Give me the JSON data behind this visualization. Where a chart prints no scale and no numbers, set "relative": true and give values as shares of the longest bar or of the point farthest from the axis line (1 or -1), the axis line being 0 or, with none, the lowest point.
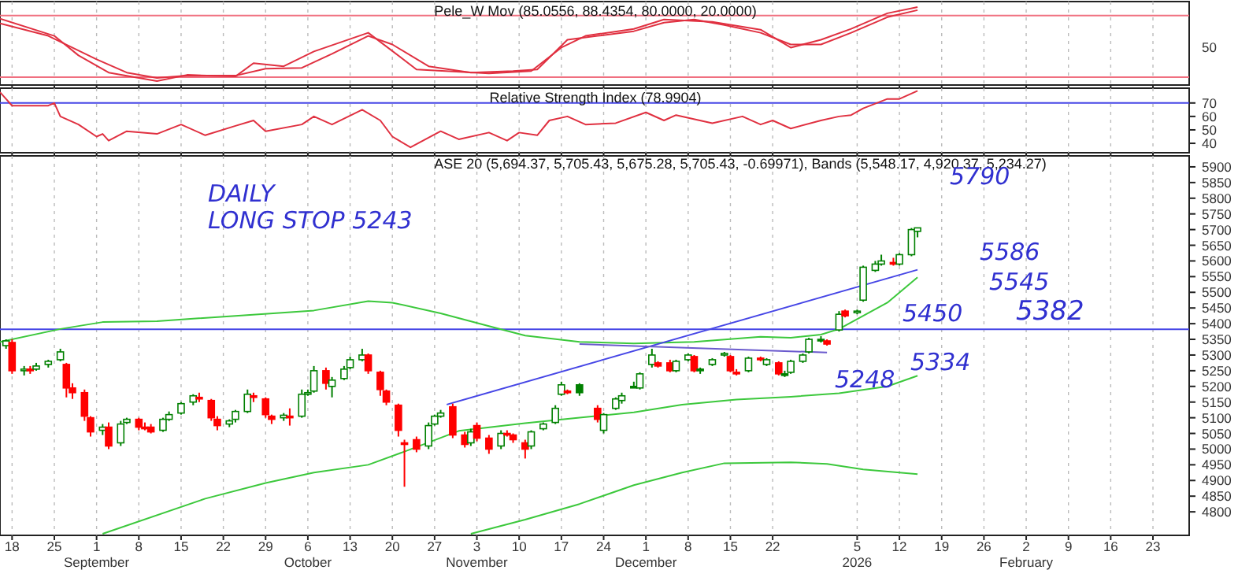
{
  "chart_data": [
    {
      "type": "line",
      "title": "Pele_W Mov (85.0556, 88.4354, 80.0000, 20.0000)",
      "xlim": [
        "2025-08-16",
        "2026-03-01"
      ],
      "relative": true,
      "annotations": [
        "50"
      ],
      "tick_labels": "y",
      "grid": "x",
      "xticks": [
        "2025-08-18",
        "2025-08-25",
        "2025-09-01",
        "2025-09-08",
        "2025-09-15",
        "2025-09-22",
        "2025-09-29",
        "2025-10-06",
        "2025-10-13",
        "2025-10-20",
        "2025-10-27",
        "2025-11-03",
        "2025-11-10",
        "2025-11-17",
        "2025-11-24",
        "2025-12-01",
        "2025-12-08",
        "2025-12-15",
        "2025-12-22",
        "2026-01-05",
        "2026-01-12",
        "2026-01-19",
        "2026-01-26",
        "2026-02-02",
        "2026-02-09",
        "2026-02-16",
        "2026-02-23"
      ],
      "ref_lines": [
        {
          "axis": "y",
          "value": 0.89,
          "color": "#f07080"
        },
        {
          "axis": "y",
          "value": 0.1,
          "color": "#f07080"
        }
      ],
      "series": [
        {
          "color": "#e03040",
          "x": [
            "2025-08-16",
            "2025-08-24",
            "2025-09-01",
            "2025-09-06",
            "2025-09-11",
            "2025-09-16",
            "2025-09-24",
            "2025-09-29",
            "2025-10-05",
            "2025-10-10",
            "2025-10-16",
            "2025-10-20",
            "2025-10-26",
            "2025-11-02",
            "2025-11-09",
            "2025-11-13",
            "2025-11-18",
            "2025-11-23",
            "2025-11-29",
            "2025-12-04",
            "2025-12-09",
            "2025-12-14",
            "2025-12-20",
            "2025-12-25",
            "2025-12-30",
            "2026-01-04",
            "2026-01-10",
            "2026-01-15"
          ],
          "values": [
            0.79,
            0.63,
            0.33,
            0.16,
            0.09,
            0.12,
            0.12,
            0.21,
            0.22,
            0.4,
            0.63,
            0.52,
            0.24,
            0.16,
            0.18,
            0.2,
            0.58,
            0.63,
            0.69,
            0.8,
            0.84,
            0.77,
            0.67,
            0.52,
            0.52,
            0.67,
            0.87,
            0.96
          ]
        },
        {
          "color": "#e03040",
          "x": [
            "2025-08-16",
            "2025-08-25",
            "2025-08-29",
            "2025-09-03",
            "2025-09-11",
            "2025-09-16",
            "2025-09-24",
            "2025-09-27",
            "2025-10-02",
            "2025-10-07",
            "2025-10-16",
            "2025-10-24",
            "2025-11-05",
            "2025-11-12",
            "2025-11-17",
            "2025-11-21",
            "2025-11-29",
            "2025-12-04",
            "2025-12-12",
            "2025-12-20",
            "2025-12-25",
            "2025-12-30",
            "2026-01-04",
            "2026-01-10",
            "2026-01-15"
          ],
          "values": [
            0.85,
            0.63,
            0.38,
            0.16,
            0.05,
            0.13,
            0.11,
            0.28,
            0.24,
            0.43,
            0.67,
            0.2,
            0.15,
            0.18,
            0.48,
            0.63,
            0.72,
            0.84,
            0.81,
            0.71,
            0.48,
            0.58,
            0.72,
            0.92,
            1
          ]
        }
      ]
    },
    {
      "type": "line",
      "title": "Relative Strength Index (78.9904)",
      "xlim": [
        "2025-08-16",
        "2026-03-01"
      ],
      "ylim": [
        33,
        81
      ],
      "yticks": [
        40,
        50,
        60,
        70
      ],
      "tick_labels": "y",
      "grid": "x",
      "xticks": [
        "2025-08-18",
        "2025-08-25",
        "2025-09-01",
        "2025-09-08",
        "2025-09-15",
        "2025-09-22",
        "2025-09-29",
        "2025-10-06",
        "2025-10-13",
        "2025-10-20",
        "2025-10-27",
        "2025-11-03",
        "2025-11-10",
        "2025-11-17",
        "2025-11-24",
        "2025-12-01",
        "2025-12-08",
        "2025-12-15",
        "2025-12-22",
        "2026-01-05",
        "2026-01-12",
        "2026-01-19",
        "2026-01-26",
        "2026-02-02",
        "2026-02-09",
        "2026-02-16",
        "2026-02-23"
      ],
      "ref_lines": [
        {
          "axis": "y",
          "value": 70,
          "color": "#4646e6"
        }
      ],
      "series": [
        {
          "color": "#e03040",
          "x": [
            "2025-08-16",
            "2025-08-18",
            "2025-08-24",
            "2025-08-25",
            "2025-08-26",
            "2025-08-29",
            "2025-09-01",
            "2025-09-02",
            "2025-09-03",
            "2025-09-06",
            "2025-09-11",
            "2025-09-15",
            "2025-09-19",
            "2025-09-24",
            "2025-09-27",
            "2025-09-29",
            "2025-10-05",
            "2025-10-07",
            "2025-10-10",
            "2025-10-15",
            "2025-10-18",
            "2025-10-20",
            "2025-10-23",
            "2025-10-28",
            "2025-10-31",
            "2025-11-05",
            "2025-11-08",
            "2025-11-10",
            "2025-11-13",
            "2025-11-15",
            "2025-11-18",
            "2025-11-21",
            "2025-11-26",
            "2025-12-01",
            "2025-12-04",
            "2025-12-06",
            "2025-12-12",
            "2025-12-17",
            "2025-12-20",
            "2025-12-22",
            "2025-12-25",
            "2025-12-30",
            "2026-01-02",
            "2026-01-04",
            "2026-01-06",
            "2026-01-10",
            "2026-01-12",
            "2026-01-15"
          ],
          "values": [
            78,
            68,
            68,
            70,
            60,
            54,
            45,
            47,
            42,
            49,
            47,
            54,
            46,
            53,
            57,
            49,
            54,
            60,
            54,
            65,
            57,
            45,
            37,
            49,
            43,
            48,
            42,
            48,
            46,
            57,
            60,
            54,
            55,
            63,
            57,
            61,
            55,
            60,
            54,
            57,
            51,
            57,
            60,
            61,
            66,
            73,
            73,
            79
          ]
        }
      ]
    },
    {
      "type": "candlestick",
      "title": "ASE 20 (5,694.37, 5,705.43, 5,675.28, 5,705.43, -0.69971), Bands (5,548.17, 4,920.37, 5,234.27)",
      "xlim": [
        "2025-08-16",
        "2026-03-01"
      ],
      "ylim": [
        4725,
        5935
      ],
      "grid": "x",
      "yticks": [
        4800,
        4850,
        4900,
        4950,
        5000,
        5050,
        5100,
        5150,
        5200,
        5250,
        5300,
        5350,
        5400,
        5450,
        5500,
        5550,
        5600,
        5650,
        5700,
        5750,
        5800,
        5850,
        5900
      ],
      "xticks": [
        {
          "value": "2025-08-18",
          "label": "18"
        },
        {
          "value": "2025-08-25",
          "label": "25"
        },
        {
          "value": "2025-09-01",
          "label": "1\nSeptember"
        },
        {
          "value": "2025-09-08",
          "label": "8"
        },
        {
          "value": "2025-09-15",
          "label": "15"
        },
        {
          "value": "2025-09-22",
          "label": "22"
        },
        {
          "value": "2025-09-29",
          "label": "29"
        },
        {
          "value": "2025-10-06",
          "label": "6\nOctober"
        },
        {
          "value": "2025-10-13",
          "label": "13"
        },
        {
          "value": "2025-10-20",
          "label": "20"
        },
        {
          "value": "2025-10-27",
          "label": "27"
        },
        {
          "value": "2025-11-03",
          "label": "3\nNovember"
        },
        {
          "value": "2025-11-10",
          "label": "10"
        },
        {
          "value": "2025-11-17",
          "label": "17"
        },
        {
          "value": "2025-11-24",
          "label": "24"
        },
        {
          "value": "2025-12-01",
          "label": "1\nDecember"
        },
        {
          "value": "2025-12-08",
          "label": "8"
        },
        {
          "value": "2025-12-15",
          "label": "15"
        },
        {
          "value": "2025-12-22",
          "label": "22"
        },
        {
          "value": "2026-01-05",
          "label": "5\n2026"
        },
        {
          "value": "2026-01-12",
          "label": "12"
        },
        {
          "value": "2026-01-19",
          "label": "19"
        },
        {
          "value": "2026-01-26",
          "label": "26"
        },
        {
          "value": "2026-02-02",
          "label": "2\nFebruary"
        },
        {
          "value": "2026-02-09",
          "label": "9"
        },
        {
          "value": "2026-02-16",
          "label": "16"
        },
        {
          "value": "2026-02-23",
          "label": "23"
        }
      ],
      "ref_lines": [
        {
          "axis": "y",
          "value": 5382,
          "label": "5382",
          "color": "#4646e6"
        }
      ],
      "annotations": [
        "DAILY",
        "LONG STOP 5243",
        "5790",
        "5586",
        "5545",
        "5450",
        "5334",
        "5248"
      ],
      "x": [
        "2025-08-17",
        "2025-08-18",
        "2025-08-20",
        "2025-08-21",
        "2025-08-22",
        "2025-08-24",
        "2025-08-26",
        "2025-08-27",
        "2025-08-28",
        "2025-08-30",
        "2025-08-31",
        "2025-09-02",
        "2025-09-03",
        "2025-09-05",
        "2025-09-06",
        "2025-09-08",
        "2025-09-09",
        "2025-09-10",
        "2025-09-12",
        "2025-09-13",
        "2025-09-15",
        "2025-09-17",
        "2025-09-18",
        "2025-09-20",
        "2025-09-21",
        "2025-09-23",
        "2025-09-24",
        "2025-09-26",
        "2025-09-27",
        "2025-09-29",
        "2025-09-30",
        "2025-10-02",
        "2025-10-03",
        "2025-10-05",
        "2025-10-06",
        "2025-10-07",
        "2025-10-09",
        "2025-10-10",
        "2025-10-12",
        "2025-10-13",
        "2025-10-15",
        "2025-10-16",
        "2025-10-18",
        "2025-10-19",
        "2025-10-21",
        "2025-10-22",
        "2025-10-24",
        "2025-10-26",
        "2025-10-27",
        "2025-10-28",
        "2025-10-30",
        "2025-11-01",
        "2025-11-02",
        "2025-11-03",
        "2025-11-05",
        "2025-11-07",
        "2025-11-08",
        "2025-11-09",
        "2025-11-11",
        "2025-11-12",
        "2025-11-14",
        "2025-11-16",
        "2025-11-17",
        "2025-11-18",
        "2025-11-20",
        "2025-11-23",
        "2025-11-24",
        "2025-11-26",
        "2025-11-27",
        "2025-11-29",
        "2025-11-30",
        "2025-12-02",
        "2025-12-03",
        "2025-12-05",
        "2025-12-06",
        "2025-12-08",
        "2025-12-09",
        "2025-12-10",
        "2025-12-12",
        "2025-12-14",
        "2025-12-15",
        "2025-12-16",
        "2025-12-18",
        "2025-12-20",
        "2025-12-21",
        "2025-12-23",
        "2025-12-24",
        "2025-12-25",
        "2025-12-27",
        "2025-12-28",
        "2025-12-30",
        "2025-12-31",
        "2026-01-02",
        "2026-01-03",
        "2026-01-05",
        "2026-01-06",
        "2026-01-08",
        "2026-01-09",
        "2026-01-11",
        "2026-01-12",
        "2026-01-14",
        "2026-01-15"
      ],
      "ohlc": [
        [
          5330,
          5350,
          5320,
          5345
        ],
        [
          5340,
          5350,
          5240,
          5250
        ],
        [
          5250,
          5265,
          5235,
          5255
        ],
        [
          5255,
          5265,
          5240,
          5250
        ],
        [
          5255,
          5275,
          5250,
          5265
        ],
        [
          5270,
          5285,
          5260,
          5280
        ],
        [
          5285,
          5320,
          5280,
          5310
        ],
        [
          5270,
          5275,
          5165,
          5195
        ],
        [
          5195,
          5210,
          5160,
          5180
        ],
        [
          5180,
          5190,
          5090,
          5105
        ],
        [
          5100,
          5105,
          5040,
          5055
        ],
        [
          5060,
          5080,
          5045,
          5070
        ],
        [
          5070,
          5085,
          5000,
          5010
        ],
        [
          5020,
          5090,
          5010,
          5080
        ],
        [
          5085,
          5100,
          5080,
          5095
        ],
        [
          5095,
          5100,
          5060,
          5070
        ],
        [
          5070,
          5085,
          5060,
          5065
        ],
        [
          5070,
          5080,
          5050,
          5055
        ],
        [
          5060,
          5100,
          5055,
          5095
        ],
        [
          5095,
          5120,
          5090,
          5110
        ],
        [
          5115,
          5150,
          5110,
          5145
        ],
        [
          5150,
          5175,
          5140,
          5170
        ],
        [
          5165,
          5180,
          5150,
          5160
        ],
        [
          5155,
          5160,
          5090,
          5100
        ],
        [
          5095,
          5105,
          5060,
          5075
        ],
        [
          5080,
          5095,
          5070,
          5090
        ],
        [
          5095,
          5125,
          5085,
          5120
        ],
        [
          5120,
          5190,
          5115,
          5175
        ],
        [
          5170,
          5180,
          5150,
          5165
        ],
        [
          5160,
          5165,
          5100,
          5110
        ],
        [
          5105,
          5110,
          5080,
          5095
        ],
        [
          5100,
          5115,
          5090,
          5108
        ],
        [
          5105,
          5130,
          5075,
          5100
        ],
        [
          5105,
          5190,
          5100,
          5175
        ],
        [
          5175,
          5190,
          5170,
          5180
        ],
        [
          5185,
          5265,
          5180,
          5250
        ],
        [
          5250,
          5260,
          5190,
          5210
        ],
        [
          5200,
          5230,
          5165,
          5220
        ],
        [
          5225,
          5265,
          5220,
          5255
        ],
        [
          5260,
          5295,
          5255,
          5285
        ],
        [
          5285,
          5320,
          5280,
          5300
        ],
        [
          5300,
          5305,
          5240,
          5250
        ],
        [
          5245,
          5250,
          5170,
          5190
        ],
        [
          5185,
          5190,
          5140,
          5150
        ],
        [
          5140,
          5145,
          5040,
          5060
        ],
        [
          5020,
          5030,
          4880,
          5015
        ],
        [
          5030,
          5040,
          4990,
          5000
        ],
        [
          5010,
          5085,
          5000,
          5075
        ],
        [
          5080,
          5110,
          5075,
          5105
        ],
        [
          5105,
          5125,
          5100,
          5115
        ],
        [
          5135,
          5145,
          5035,
          5045
        ],
        [
          5045,
          5055,
          5005,
          5015
        ],
        [
          5020,
          5065,
          5010,
          5055
        ],
        [
          5075,
          5085,
          5025,
          5035
        ],
        [
          5035,
          5045,
          4985,
          5000
        ],
        [
          5010,
          5060,
          5000,
          5050
        ],
        [
          5050,
          5060,
          5040,
          5045
        ],
        [
          5045,
          5050,
          5020,
          5030
        ],
        [
          5020,
          5030,
          4970,
          5000
        ],
        [
          5010,
          5060,
          5000,
          5055
        ],
        [
          5065,
          5085,
          5060,
          5080
        ],
        [
          5085,
          5140,
          5080,
          5130
        ],
        [
          5175,
          5215,
          5170,
          5205
        ],
        [
          5185,
          5190,
          5175,
          5180
        ],
        [
          5205,
          5210,
          5170,
          5180
        ],
        [
          5130,
          5140,
          5085,
          5095
        ],
        [
          5060,
          5115,
          5050,
          5110
        ],
        [
          5130,
          5165,
          5125,
          5160
        ],
        [
          5155,
          5180,
          5145,
          5170
        ],
        [
          5200,
          5215,
          5195,
          5200
        ],
        [
          5195,
          5245,
          5190,
          5240
        ],
        [
          5270,
          5320,
          5260,
          5300
        ],
        [
          5275,
          5280,
          5260,
          5265
        ],
        [
          5275,
          5285,
          5245,
          5250
        ],
        [
          5250,
          5285,
          5245,
          5280
        ],
        [
          5285,
          5305,
          5280,
          5300
        ],
        [
          5295,
          5300,
          5245,
          5250
        ],
        [
          5255,
          5260,
          5240,
          5255
        ],
        [
          5270,
          5290,
          5265,
          5285
        ],
        [
          5300,
          5310,
          5295,
          5305
        ],
        [
          5295,
          5300,
          5245,
          5250
        ],
        [
          5245,
          5255,
          5235,
          5245
        ],
        [
          5250,
          5295,
          5245,
          5290
        ],
        [
          5290,
          5295,
          5280,
          5285
        ],
        [
          5270,
          5290,
          5265,
          5285
        ],
        [
          5275,
          5280,
          5235,
          5240
        ],
        [
          5240,
          5250,
          5230,
          5240
        ],
        [
          5245,
          5285,
          5240,
          5280
        ],
        [
          5280,
          5305,
          5275,
          5300
        ],
        [
          5310,
          5355,
          5305,
          5350
        ],
        [
          5350,
          5360,
          5340,
          5350
        ],
        [
          5345,
          5350,
          5330,
          5335
        ],
        [
          5380,
          5440,
          5375,
          5430
        ],
        [
          5440,
          5445,
          5420,
          5425
        ],
        [
          5435,
          5445,
          5430,
          5440
        ],
        [
          5475,
          5585,
          5470,
          5580
        ],
        [
          5570,
          5600,
          5565,
          5590
        ],
        [
          5590,
          5620,
          5585,
          5600
        ],
        [
          5595,
          5610,
          5585,
          5590
        ],
        [
          5590,
          5625,
          5585,
          5620
        ],
        [
          5620,
          5705,
          5615,
          5700
        ],
        [
          5694.37,
          5705.43,
          5675.28,
          5705.43
        ]
      ],
      "colors": [
        "#008000",
        "#ff0000",
        "#008000",
        "#ff0000",
        "#008000",
        "#008000",
        "#008000",
        "#ff0000",
        "#ff0000",
        "#ff0000",
        "#ff0000",
        "#008000",
        "#ff0000",
        "#008000",
        "#008000",
        "#ff0000",
        "#ff0000",
        "#ff0000",
        "#008000",
        "#008000",
        "#008000",
        "#008000",
        "#ff0000",
        "#ff0000",
        "#ff0000",
        "#008000",
        "#008000",
        "#008000",
        "#ff0000",
        "#ff0000",
        "#ff0000",
        "#008000",
        "#ff0000",
        "#008000",
        "#008000",
        "#008000",
        "#ff0000",
        "#008000",
        "#008000",
        "#008000",
        "#008000",
        "#ff0000",
        "#ff0000",
        "#ff0000",
        "#ff0000",
        "#ff0000",
        "#ff0000",
        "#008000",
        "#008000",
        "#008000",
        "#ff0000",
        "#ff0000",
        "#008000",
        "#ff0000",
        "#ff0000",
        "#008000",
        "#ff0000",
        "#ff0000",
        "#ff0000",
        "#008000",
        "#008000",
        "#008000",
        "#008000",
        "#ff0000",
        "#008000",
        "#ff0000",
        "#008000",
        "#008000",
        "#008000",
        "#008000",
        "#008000",
        "#008000",
        "#ff0000",
        "#ff0000",
        "#008000",
        "#008000",
        "#ff0000",
        "#008000",
        "#008000",
        "#008000",
        "#ff0000",
        "#ff0000",
        "#008000",
        "#ff0000",
        "#008000",
        "#ff0000",
        "#008000",
        "#008000",
        "#008000",
        "#008000",
        "#008000",
        "#ff0000",
        "#008000",
        "#ff0000",
        "#008000",
        "#008000",
        "#008000",
        "#008000",
        "#ff0000",
        "#008000",
        "#008000",
        "#008000"
      ],
      "series": [
        {
          "type": "line",
          "color": "#3cc83c",
          "x": [
            "2025-08-16",
            "2025-08-26",
            "2025-09-02",
            "2025-09-11",
            "2025-09-24",
            "2025-10-07",
            "2025-10-16",
            "2025-10-20",
            "2025-10-28",
            "2025-11-05",
            "2025-11-11",
            "2025-11-20",
            "2025-11-29",
            "2025-12-09",
            "2025-12-20",
            "2025-12-25",
            "2025-12-30",
            "2026-01-02",
            "2026-01-06",
            "2026-01-10",
            "2026-01-15"
          ],
          "values": [
            5342,
            5383,
            5405,
            5408,
            5425,
            5442,
            5472,
            5467,
            5433,
            5392,
            5362,
            5342,
            5337,
            5342,
            5358,
            5355,
            5365,
            5383,
            5425,
            5467,
            5548
          ]
        },
        {
          "type": "line",
          "color": "#3cc83c",
          "x": [
            "2025-09-02",
            "2025-09-19",
            "2025-09-29",
            "2025-10-07",
            "2025-10-16",
            "2025-10-22",
            "2025-10-31",
            "2025-11-11",
            "2025-11-20",
            "2025-11-29",
            "2025-12-07",
            "2025-12-16",
            "2025-12-25",
            "2026-01-02",
            "2026-01-10",
            "2026-01-15"
          ],
          "values": [
            4730,
            4842,
            4892,
            4925,
            4950,
            4992,
            5058,
            5083,
            5100,
            5117,
            5142,
            5158,
            5167,
            5178,
            5200,
            5234
          ]
        },
        {
          "type": "line",
          "color": "#3cc83c",
          "x": [
            "2025-11-02",
            "2025-11-11",
            "2025-11-20",
            "2025-11-29",
            "2025-12-07",
            "2025-12-14",
            "2025-12-25",
            "2025-12-31",
            "2026-01-06",
            "2026-01-15"
          ],
          "values": [
            4730,
            4775,
            4825,
            4885,
            4925,
            4955,
            4958,
            4953,
            4935,
            4920
          ]
        },
        {
          "type": "line",
          "color": "#4646e6",
          "x": [
            "2025-10-29",
            "2026-01-15"
          ],
          "values": [
            5142,
            5572
          ]
        },
        {
          "type": "line",
          "color": "#6a5acd",
          "x": [
            "2025-11-20",
            "2025-12-31"
          ],
          "values": [
            5335,
            5308
          ]
        }
      ]
    }
  ]
}
